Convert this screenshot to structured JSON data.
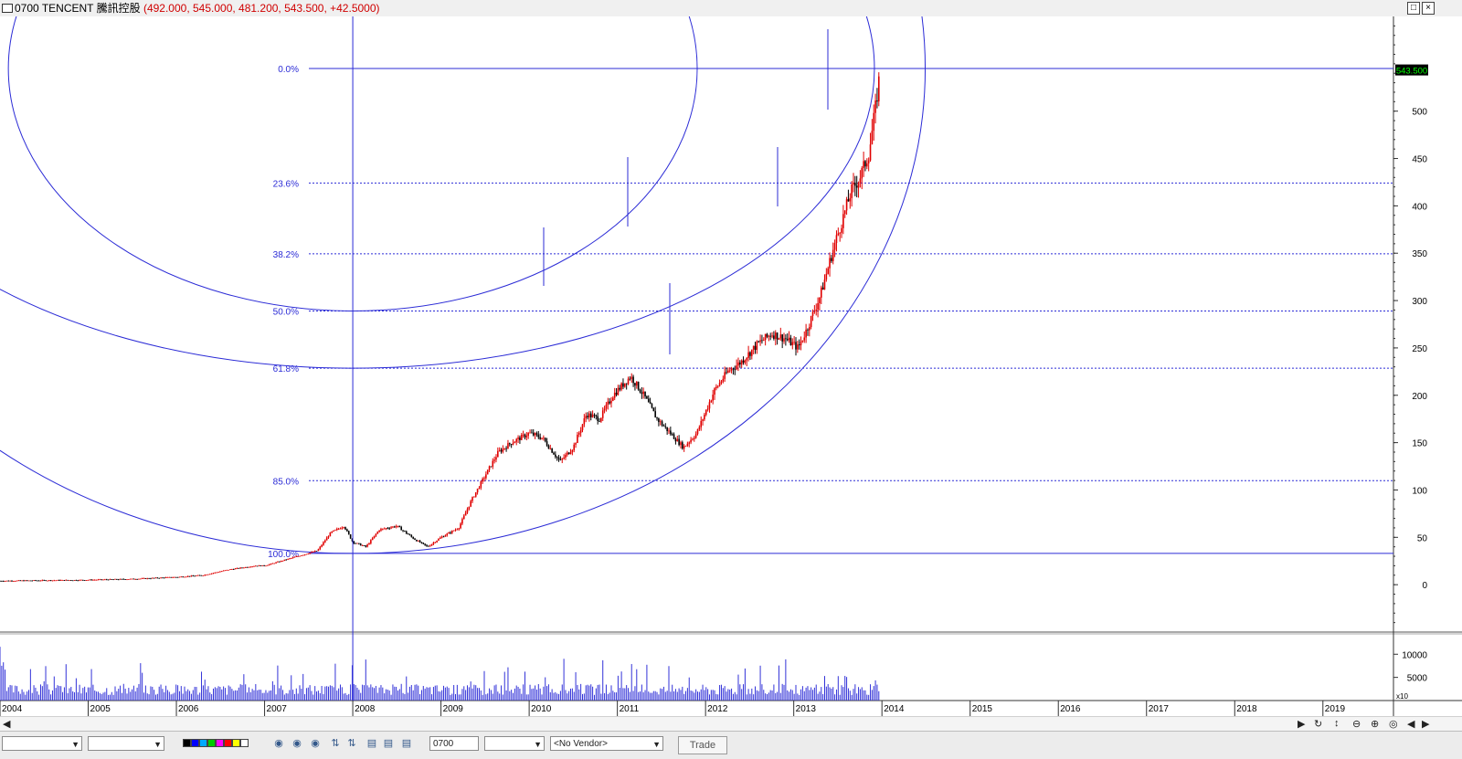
{
  "window": {
    "title": "0700 TENCENT 騰訊控股",
    "ohlc": "(492.000, 545.000, 481.200, 543.500, +42.5000)",
    "restore_label": "□",
    "close_label": "×"
  },
  "chart_data": {
    "type": "candlestick",
    "ylim": [
      -50,
      600
    ],
    "yticks": [
      0,
      50,
      100,
      150,
      200,
      250,
      300,
      350,
      400,
      450,
      500
    ],
    "ytick_labels": [
      "0",
      "50",
      "100",
      "150",
      "200",
      "250",
      "300",
      "350",
      "400",
      "450",
      "500"
    ],
    "last_price_label": "543.500",
    "last_price": 543.5,
    "x_axis": {
      "range": [
        2004.0,
        2019.8
      ],
      "year_ticks": [
        2004,
        2005,
        2006,
        2007,
        2008,
        2009,
        2010,
        2011,
        2012,
        2013,
        2014,
        2015,
        2016,
        2017,
        2018,
        2019
      ],
      "year_labels": [
        "2004",
        "2005",
        "2006",
        "2007",
        "2008",
        "2009",
        "2010",
        "2011",
        "2012",
        "2013",
        "2014",
        "2015",
        "2016",
        "2017",
        "2018",
        "2019"
      ]
    },
    "fibonacci": {
      "high": 545.0,
      "low": 33.0,
      "levels": [
        {
          "ratio": 0.0,
          "label": "0.0%"
        },
        {
          "ratio": 0.236,
          "label": "23.6%"
        },
        {
          "ratio": 0.382,
          "label": "38.2%"
        },
        {
          "ratio": 0.5,
          "label": "50.0%"
        },
        {
          "ratio": 0.618,
          "label": "61.8%"
        },
        {
          "ratio": 0.85,
          "label": "85.0%"
        },
        {
          "ratio": 1.0,
          "label": "100.0%"
        }
      ],
      "anchor_year": 2008.0,
      "arc_radii_labels": [
        "50.0%",
        "61.8%",
        "100.0%"
      ]
    },
    "price_series": {
      "name": "",
      "points": [
        [
          2004.0,
          4
        ],
        [
          2004.5,
          4.5
        ],
        [
          2005.0,
          5
        ],
        [
          2005.5,
          6
        ],
        [
          2006.0,
          8
        ],
        [
          2006.3,
          10
        ],
        [
          2006.6,
          16
        ],
        [
          2006.9,
          20
        ],
        [
          2007.0,
          20
        ],
        [
          2007.3,
          28
        ],
        [
          2007.6,
          36
        ],
        [
          2007.75,
          55
        ],
        [
          2007.9,
          62
        ],
        [
          2008.0,
          45
        ],
        [
          2008.15,
          40
        ],
        [
          2008.3,
          58
        ],
        [
          2008.5,
          62
        ],
        [
          2008.7,
          48
        ],
        [
          2008.85,
          40
        ],
        [
          2009.0,
          50
        ],
        [
          2009.2,
          60
        ],
        [
          2009.35,
          90
        ],
        [
          2009.5,
          115
        ],
        [
          2009.65,
          140
        ],
        [
          2009.8,
          150
        ],
        [
          2010.0,
          160
        ],
        [
          2010.15,
          155
        ],
        [
          2010.35,
          130
        ],
        [
          2010.5,
          145
        ],
        [
          2010.65,
          180
        ],
        [
          2010.8,
          175
        ],
        [
          2010.95,
          200
        ],
        [
          2011.15,
          220
        ],
        [
          2011.3,
          200
        ],
        [
          2011.45,
          175
        ],
        [
          2011.6,
          160
        ],
        [
          2011.75,
          145
        ],
        [
          2011.9,
          160
        ],
        [
          2012.1,
          205
        ],
        [
          2012.25,
          225
        ],
        [
          2012.4,
          235
        ],
        [
          2012.6,
          255
        ],
        [
          2012.75,
          265
        ],
        [
          2012.9,
          260
        ],
        [
          2013.05,
          250
        ],
        [
          2013.15,
          270
        ],
        [
          2013.3,
          305
        ],
        [
          2013.45,
          355
        ],
        [
          2013.55,
          385
        ],
        [
          2013.65,
          415
        ],
        [
          2013.75,
          430
        ],
        [
          2013.85,
          455
        ],
        [
          2013.93,
          505
        ],
        [
          2013.98,
          543.5
        ]
      ]
    },
    "volume_axis": {
      "yticks": [
        5000,
        10000
      ],
      "ytick_labels": [
        "5000",
        "10000"
      ],
      "unit_label": "x10",
      "ylim": [
        0,
        14000
      ]
    }
  },
  "toolbar": {
    "stock_code": "0700",
    "vendor_select": "<No Vendor>",
    "trade_label": "Trade",
    "swatch_colors": [
      "#000000",
      "#0000ff",
      "#00aaff",
      "#00cc00",
      "#ff00ff",
      "#ff0000",
      "#ffff00",
      "#ffffff"
    ]
  },
  "colors": {
    "up": "#e00000",
    "down": "#000000",
    "fib": "#2b2bd6",
    "volume": "#3232d8",
    "last_price_bg": "#000000",
    "last_price_fg": "#00ff00"
  }
}
